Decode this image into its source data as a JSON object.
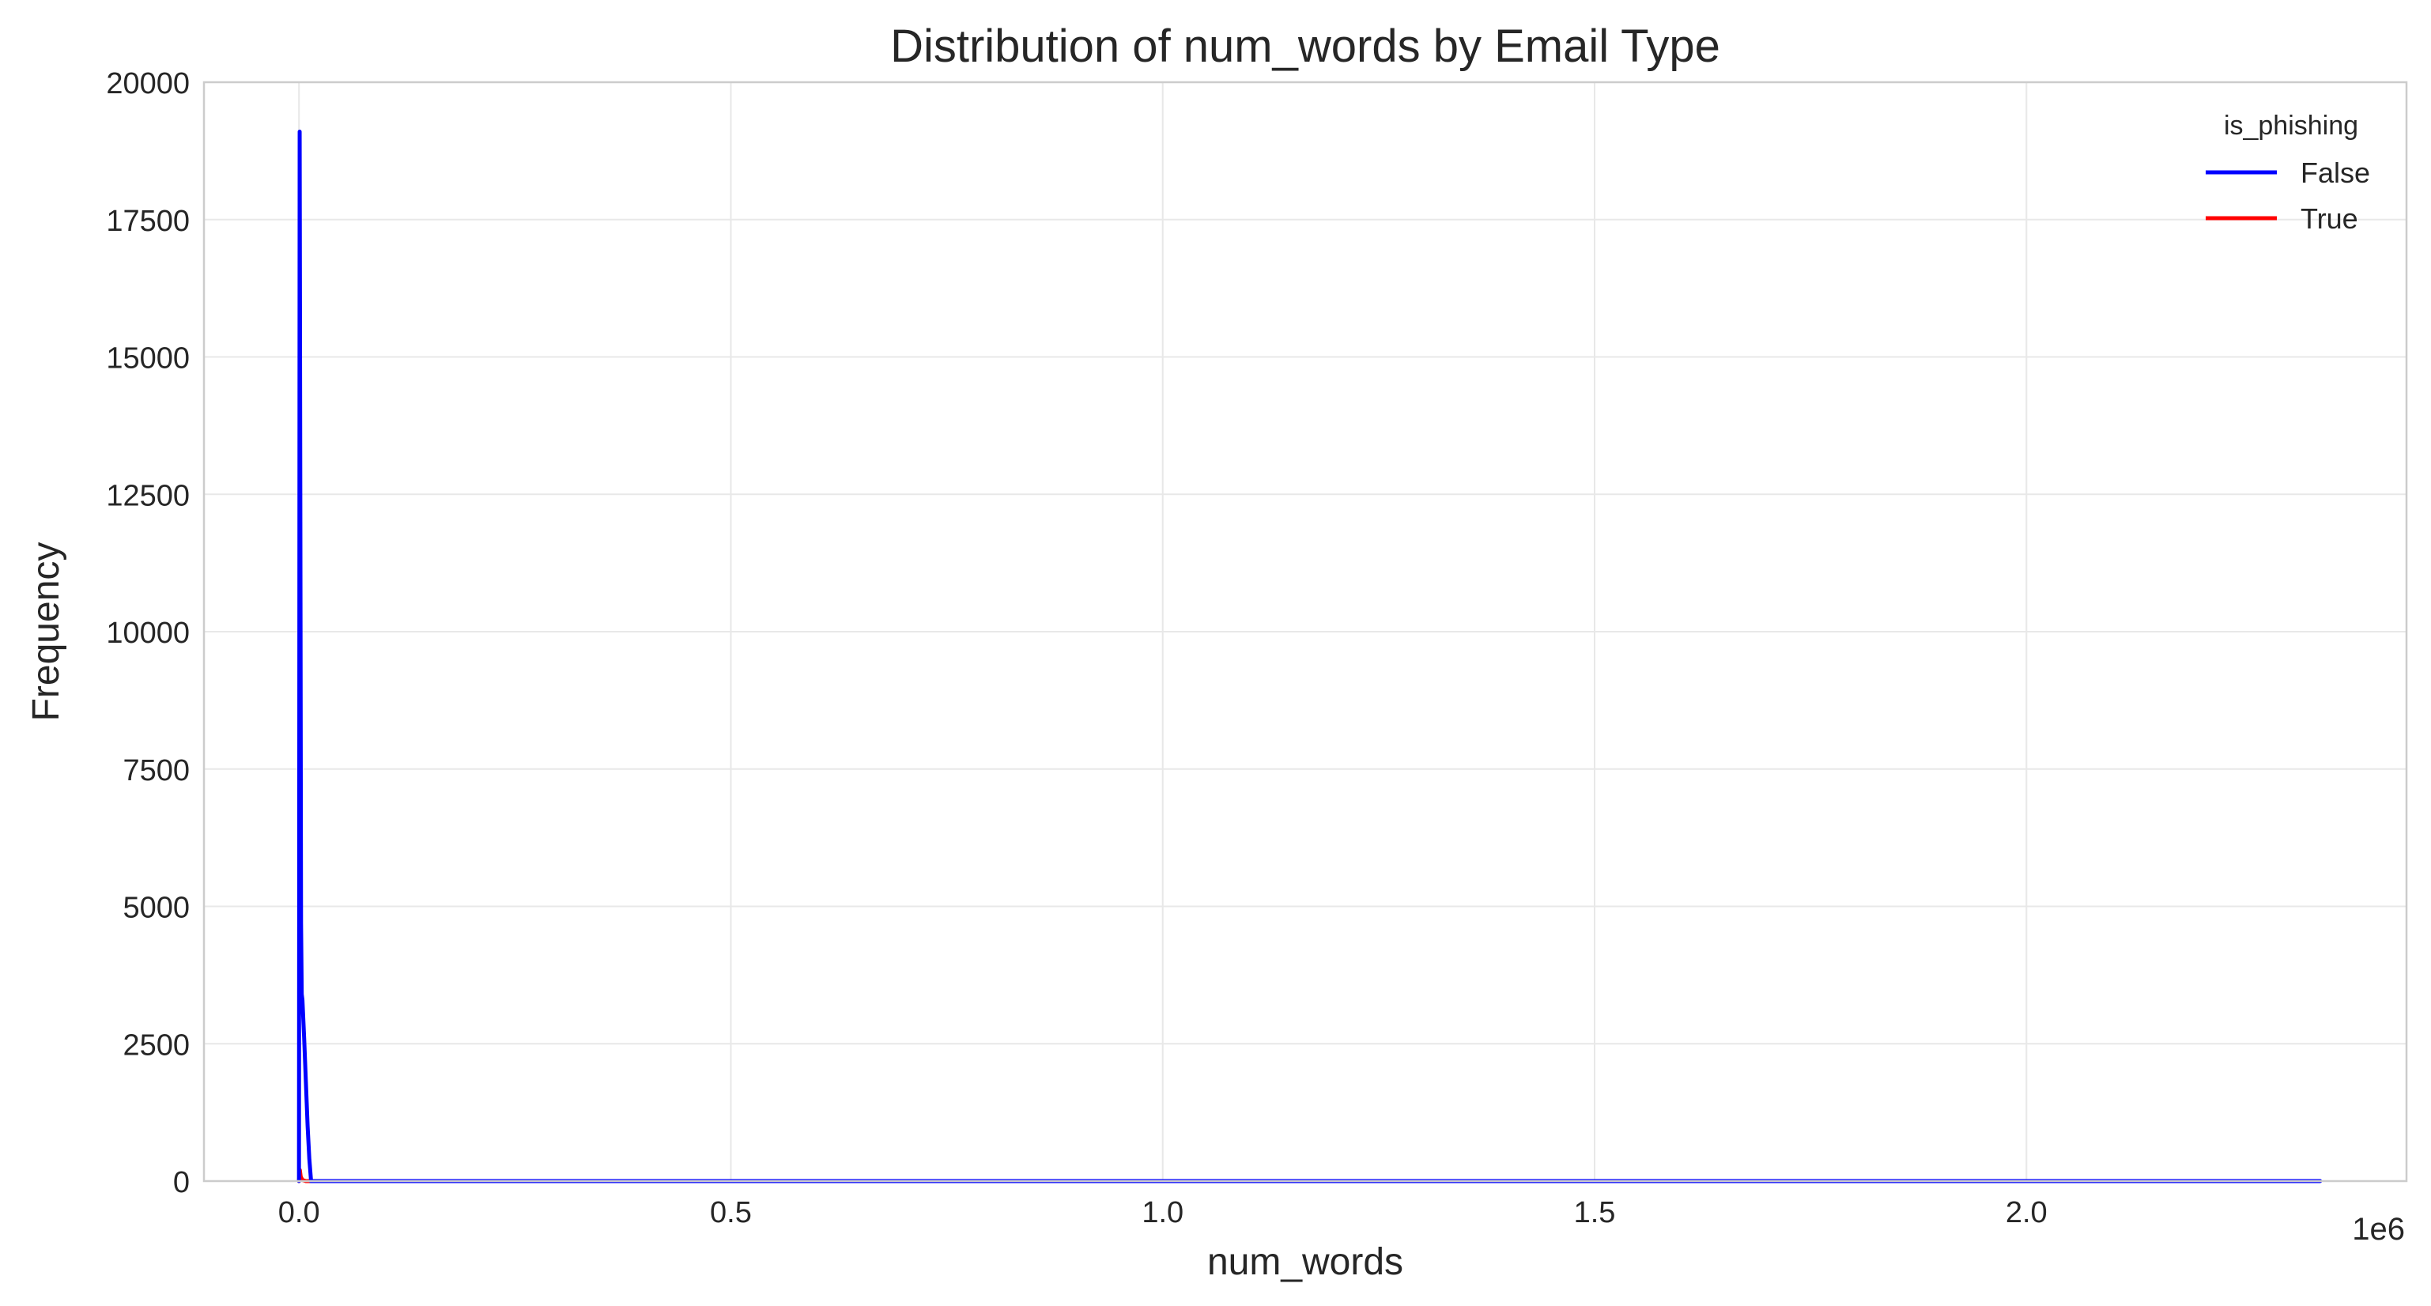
{
  "chart_data": {
    "type": "line",
    "title": "Distribution of num_words by Email Type",
    "xlabel": "num_words",
    "ylabel": "Frequency",
    "x_offset_text": "1e6",
    "x_scale": 1000000,
    "xlim": [
      -110000,
      2440000
    ],
    "ylim": [
      0,
      20000
    ],
    "x_ticks": [
      0,
      500000,
      1000000,
      1500000,
      2000000
    ],
    "x_tick_labels": [
      "0.0",
      "0.5",
      "1.0",
      "1.5",
      "2.0"
    ],
    "y_ticks": [
      0,
      2500,
      5000,
      7500,
      10000,
      12500,
      15000,
      17500,
      20000
    ],
    "y_tick_labels": [
      "0",
      "2500",
      "5000",
      "7500",
      "10000",
      "12500",
      "15000",
      "17500",
      "20000"
    ],
    "grid": true,
    "legend": {
      "title": "is_phishing",
      "placement": "top-right",
      "entries": [
        {
          "label": "False",
          "color": "#0000ff"
        },
        {
          "label": "True",
          "color": "#ff0000"
        }
      ]
    },
    "series": [
      {
        "name": "True",
        "color": "#ff0000",
        "x": [
          0,
          1000,
          2000,
          4000,
          8000,
          15000
        ],
        "y": [
          0,
          200,
          80,
          20,
          0,
          0
        ]
      },
      {
        "name": "False",
        "color": "#0000ff",
        "x": [
          0,
          800,
          1600,
          2400,
          3200,
          4000,
          6000,
          8000,
          10000,
          12000,
          14000,
          50000,
          500000,
          1000000,
          1500000,
          2000000,
          2340000
        ],
        "y": [
          0,
          19100,
          12000,
          4700,
          3400,
          3300,
          2600,
          1800,
          1000,
          400,
          0,
          0,
          0,
          0,
          0,
          0,
          0
        ]
      }
    ]
  }
}
